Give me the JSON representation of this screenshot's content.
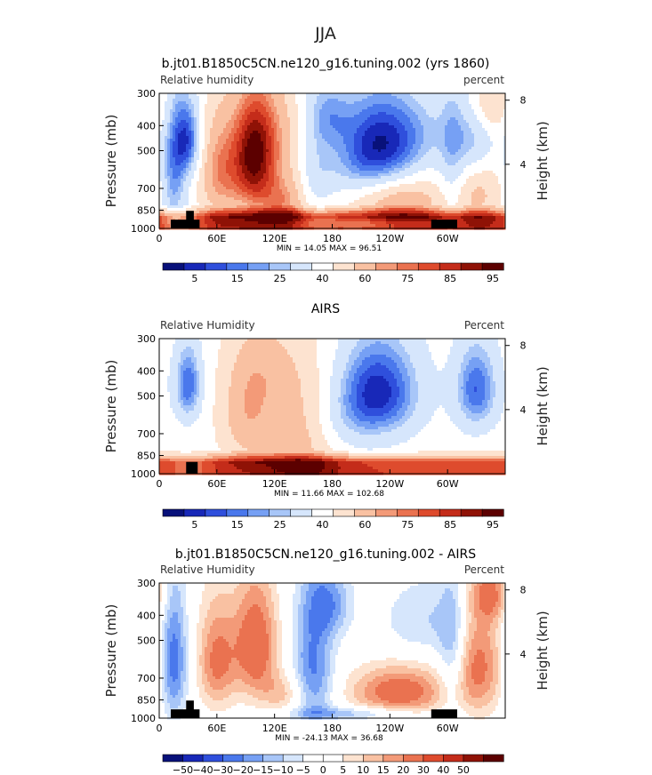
{
  "figure": {
    "title": "JJA"
  },
  "colors": {
    "rh_scale": [
      "#08117a",
      "#1828b8",
      "#2f4fdc",
      "#4a78ec",
      "#76a0f4",
      "#a8c6f8",
      "#d6e6fc",
      "#ffffff",
      "#fde3d0",
      "#f9c1a2",
      "#f39a78",
      "#ea7250",
      "#de4b2d",
      "#c42c1a",
      "#8f1206",
      "#5c0000"
    ],
    "diff_scale": [
      "#08117a",
      "#1828b8",
      "#2f4fdc",
      "#4a78ec",
      "#76a0f4",
      "#a8c6f8",
      "#d6e6fc",
      "#ffffff",
      "#ffffff",
      "#fde3d0",
      "#f9c1a2",
      "#f39a78",
      "#ea7250",
      "#de4b2d",
      "#c42c1a",
      "#8f1206",
      "#5c0000"
    ]
  },
  "chart_data": [
    {
      "type": "heatmap",
      "title": "b.jt01.B1850C5CN.ne120_g16.tuning.002 (yrs 1860)",
      "left_label": "Relative humidity",
      "right_label": "percent",
      "ylabel": "Pressure (mb)",
      "ylabel_right": "Height (km)",
      "x_ticks": [
        "0",
        "60E",
        "120E",
        "180",
        "120W",
        "60W"
      ],
      "y_ticks": [
        "300",
        "400",
        "500",
        "700",
        "850",
        "1000"
      ],
      "right_ticks": [
        "8",
        "4"
      ],
      "min_label": "MIN =",
      "min": "14.05",
      "max_label": "MAX =",
      "max": "96.51",
      "colorbar_labels": [
        "5",
        "15",
        "25",
        "40",
        "60",
        "75",
        "85",
        "95"
      ],
      "field": "model",
      "ylim": [
        1000,
        300
      ]
    },
    {
      "type": "heatmap",
      "title": "AIRS",
      "left_label": "Relative Humidity",
      "right_label": "Percent",
      "ylabel": "Pressure (mb)",
      "ylabel_right": "Height (km)",
      "x_ticks": [
        "0",
        "60E",
        "120E",
        "180",
        "120W",
        "60W"
      ],
      "y_ticks": [
        "300",
        "400",
        "500",
        "700",
        "850",
        "1000"
      ],
      "right_ticks": [
        "8",
        "4"
      ],
      "min_label": "MIN =",
      "min": "11.66",
      "max_label": "MAX =",
      "max": "102.68",
      "colorbar_labels": [
        "5",
        "15",
        "25",
        "40",
        "60",
        "75",
        "85",
        "95"
      ],
      "field": "obs",
      "ylim": [
        1000,
        300
      ]
    },
    {
      "type": "heatmap",
      "title": "b.jt01.B1850C5CN.ne120_g16.tuning.002 - AIRS",
      "left_label": "Relative Humidity",
      "right_label": "Percent",
      "ylabel": "Pressure (mb)",
      "ylabel_right": "Height (km)",
      "x_ticks": [
        "0",
        "60E",
        "120E",
        "180",
        "120W",
        "60W"
      ],
      "y_ticks": [
        "300",
        "400",
        "500",
        "700",
        "850",
        "1000"
      ],
      "right_ticks": [
        "8",
        "4"
      ],
      "min_label": "MIN =",
      "min": "-24.13",
      "max_label": "MAX =",
      "max": "36.68",
      "colorbar_labels": [
        "−50",
        "−40",
        "−30",
        "−20",
        "−15",
        "−10",
        "−5",
        "0",
        "5",
        "10",
        "15",
        "20",
        "30",
        "40",
        "50"
      ],
      "field": "diff",
      "ylim": [
        1000,
        300
      ]
    }
  ]
}
